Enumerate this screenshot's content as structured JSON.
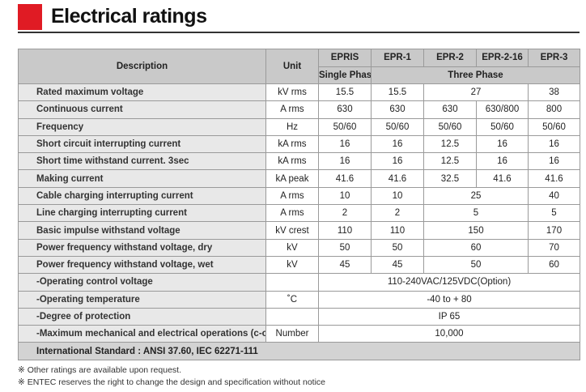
{
  "header": {
    "title": "Electrical ratings"
  },
  "table": {
    "head": [
      [
        {
          "text": "Description",
          "rowspan": 2
        },
        {
          "text": "Unit",
          "rowspan": 2
        },
        "EPRIS",
        "EPR-1",
        "EPR-2",
        "EPR-2-16",
        "EPR-3"
      ],
      [
        "Single Phase",
        {
          "text": "Three Phase",
          "colspan": 4
        }
      ]
    ],
    "rows": [
      [
        "Rated maximum voltage",
        "kV rms",
        "15.5",
        "15.5",
        {
          "text": "27",
          "colspan": 2
        },
        "38"
      ],
      [
        "Continuous current",
        "A rms",
        "630",
        "630",
        "630",
        "630/800",
        "800"
      ],
      [
        "Frequency",
        "Hz",
        "50/60",
        "50/60",
        "50/60",
        "50/60",
        "50/60"
      ],
      [
        "Short circuit interrupting current",
        "kA rms",
        "16",
        "16",
        "12.5",
        "16",
        "16"
      ],
      [
        "Short time withstand current. 3sec",
        "kA rms",
        "16",
        "16",
        "12.5",
        "16",
        "16"
      ],
      [
        "Making current",
        "kA peak",
        "41.6",
        "41.6",
        "32.5",
        "41.6",
        "41.6"
      ],
      [
        "Cable charging interrupting current",
        "A rms",
        "10",
        "10",
        {
          "text": "25",
          "colspan": 2
        },
        "40"
      ],
      [
        "Line charging interrupting current",
        "A rms",
        "2",
        "2",
        {
          "text": "5",
          "colspan": 2
        },
        "5"
      ],
      [
        "Basic impulse withstand voltage",
        "kV crest",
        "110",
        "110",
        {
          "text": "150",
          "colspan": 2
        },
        "170"
      ],
      [
        "Power frequency withstand voltage, dry",
        "kV",
        "50",
        "50",
        {
          "text": "60",
          "colspan": 2
        },
        "70"
      ],
      [
        "Power frequency withstand voltage, wet",
        "kV",
        "45",
        "45",
        {
          "text": "50",
          "colspan": 2
        },
        "60"
      ],
      [
        "-Operating control voltage",
        null,
        {
          "text": "110-240VAC/125VDC(Option)",
          "colspan": 5
        }
      ],
      [
        "-Operating temperature",
        "˚C",
        {
          "text": "-40 to + 80",
          "colspan": 5
        }
      ],
      [
        "-Degree of protection",
        null,
        {
          "text": "IP 65",
          "colspan": 5
        }
      ],
      [
        "-Maximum mechanical and electrical operations (c-o)",
        "Number",
        {
          "text": "10,000",
          "colspan": 5
        }
      ],
      [
        {
          "text": "International Standard : ANSI 37.60,  IEC 62271-111",
          "colspan": 7
        }
      ]
    ]
  },
  "footnotes": [
    "※ Other ratings are available upon request.",
    "※ ENTEC reserves the right to change the design and specification without notice"
  ]
}
